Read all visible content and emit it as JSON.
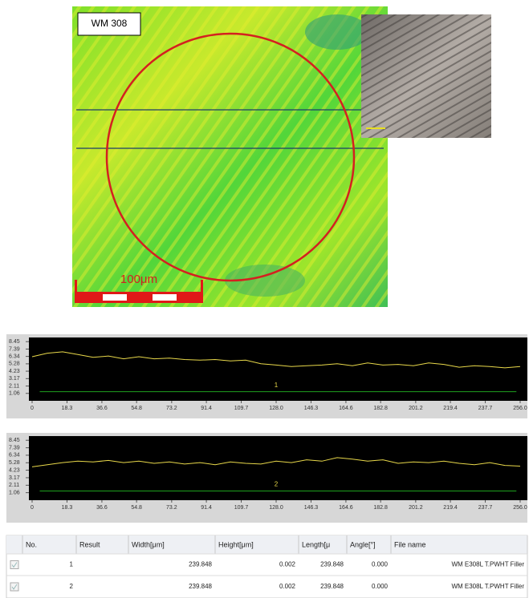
{
  "figure": {
    "label": "WM 308",
    "scale_label": "100μm"
  },
  "chart_data": [
    {
      "type": "line",
      "annotation": "1",
      "x": [
        0,
        8,
        16,
        24,
        32,
        40,
        48,
        56,
        64,
        72,
        80,
        88,
        96,
        104,
        112,
        120,
        128,
        136,
        144,
        152,
        160,
        168,
        176,
        184,
        192,
        200,
        208,
        216,
        224,
        232,
        240,
        248,
        256
      ],
      "series": [
        {
          "color": "#e8d84a",
          "values": [
            6.3,
            6.8,
            7.0,
            6.6,
            6.2,
            6.4,
            6.0,
            6.3,
            6.0,
            6.1,
            5.9,
            5.8,
            5.9,
            5.7,
            5.8,
            5.3,
            5.1,
            4.9,
            5.0,
            5.1,
            5.3,
            5.0,
            5.4,
            5.1,
            5.2,
            5.0,
            5.4,
            5.2,
            4.8,
            5.0,
            4.9,
            4.7,
            4.9
          ]
        },
        {
          "color": "#1fa21f",
          "x": [
            4,
            254
          ],
          "values": [
            1.3,
            1.3
          ]
        }
      ],
      "xlim": [
        0,
        256
      ],
      "ylim": [
        0,
        8.7
      ],
      "xticks": [
        0,
        18.3,
        36.6,
        54.8,
        73.2,
        91.4,
        109.7,
        {
          "value": 128,
          "label": "128.0"
        },
        146.3,
        164.6,
        182.8,
        201.2,
        219.4,
        237.7,
        {
          "value": 256,
          "label": "256.0"
        }
      ],
      "yticks": [
        8.45,
        7.39,
        6.34,
        5.28,
        4.23,
        3.17,
        2.11,
        1.06
      ]
    },
    {
      "type": "line",
      "annotation": "2",
      "x": [
        0,
        8,
        16,
        24,
        32,
        40,
        48,
        56,
        64,
        72,
        80,
        88,
        96,
        104,
        112,
        120,
        128,
        136,
        144,
        152,
        160,
        168,
        176,
        184,
        192,
        200,
        208,
        216,
        224,
        232,
        240,
        248,
        256
      ],
      "series": [
        {
          "color": "#e8d84a",
          "values": [
            4.7,
            5.0,
            5.3,
            5.5,
            5.4,
            5.6,
            5.3,
            5.5,
            5.2,
            5.4,
            5.1,
            5.3,
            5.0,
            5.4,
            5.2,
            5.1,
            5.5,
            5.3,
            5.7,
            5.5,
            6.0,
            5.8,
            5.5,
            5.7,
            5.2,
            5.4,
            5.3,
            5.5,
            5.2,
            5.0,
            5.3,
            4.9,
            4.8
          ]
        },
        {
          "color": "#1fa21f",
          "x": [
            4,
            254
          ],
          "values": [
            1.3,
            1.3
          ]
        }
      ],
      "xlim": [
        0,
        256
      ],
      "ylim": [
        0,
        8.7
      ],
      "xticks": [
        0,
        18.3,
        36.6,
        54.8,
        73.2,
        91.4,
        109.7,
        {
          "value": 128,
          "label": "128.0"
        },
        146.3,
        164.6,
        182.8,
        201.2,
        219.4,
        237.7,
        {
          "value": 256,
          "label": "256.0"
        }
      ],
      "yticks": [
        8.45,
        7.39,
        6.34,
        5.28,
        4.23,
        3.17,
        2.11,
        1.06
      ]
    }
  ],
  "table": {
    "headers": [
      "No.",
      "Result",
      "Width[μm]",
      "Height[μm]",
      "Length[μ",
      "Angle[°]",
      "File name"
    ],
    "rows": [
      [
        "1",
        null,
        "239.848",
        "0.002",
        "239.848",
        "0.000",
        "WM E308L T.PWHT Filler"
      ],
      [
        "2",
        null,
        "239.848",
        "0.002",
        "239.848",
        "0.000",
        "WM E308L T.PWHT Filler"
      ]
    ]
  }
}
